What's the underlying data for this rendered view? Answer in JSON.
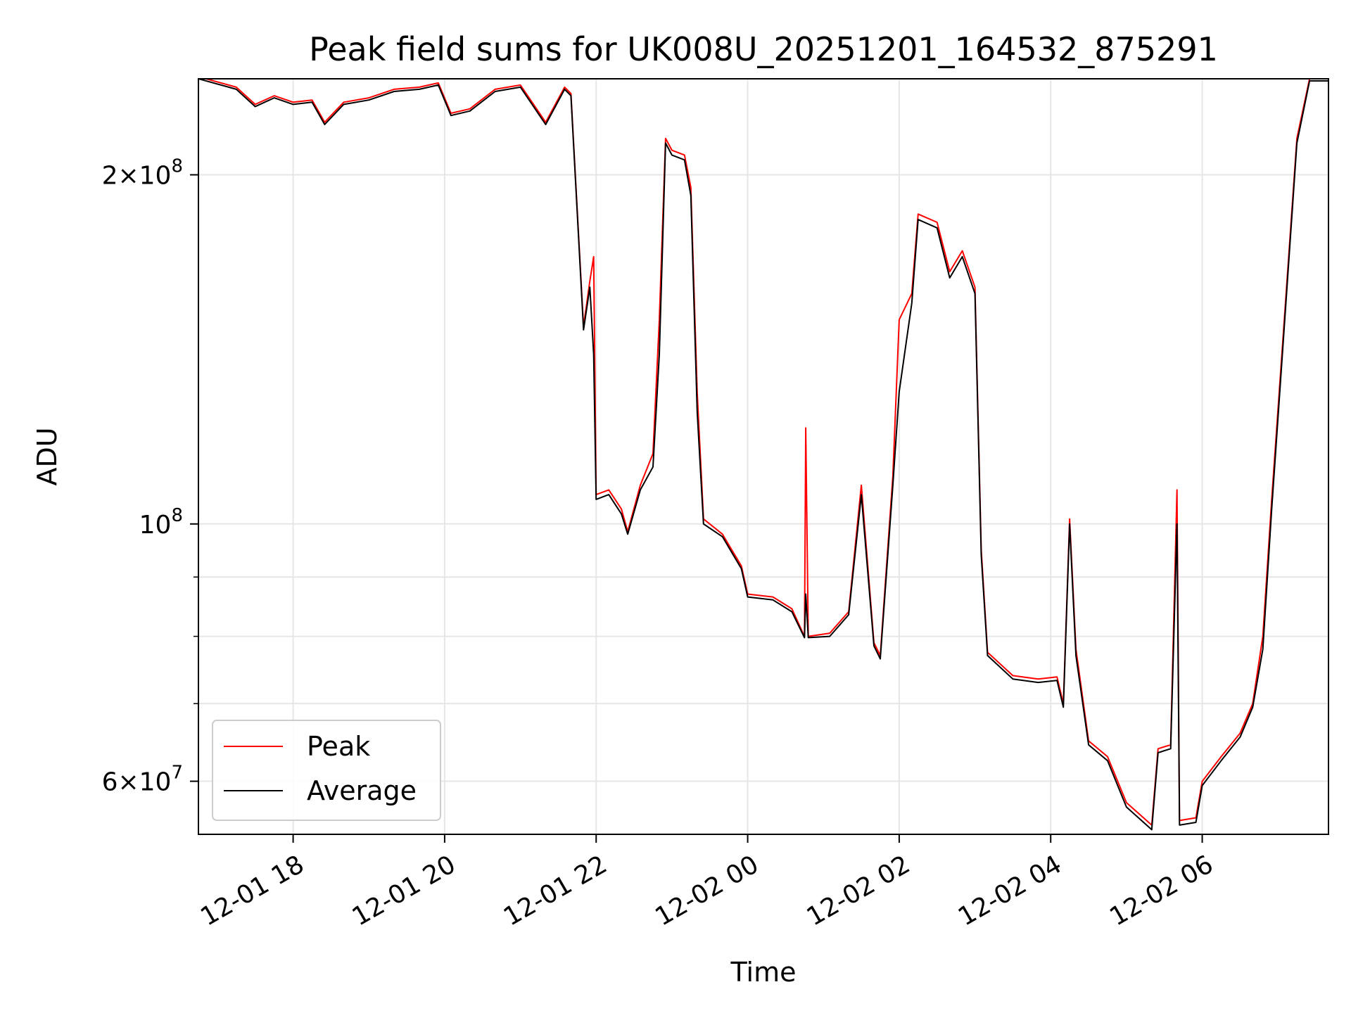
{
  "chart_data": {
    "type": "line",
    "title": "Peak field sums for UK008U_20251201_164532_875291",
    "xlabel": "Time",
    "ylabel": "ADU",
    "x_scale": "time",
    "y_scale": "log",
    "xlim": [
      "2025-12-01T16:45",
      "2025-12-02T07:40"
    ],
    "ylim": [
      54000000,
      242000000
    ],
    "x_ticks": [
      "12-01 18",
      "12-01 20",
      "12-01 22",
      "12-02 00",
      "12-02 02",
      "12-02 04",
      "12-02 06"
    ],
    "x_tick_values": [
      "2025-12-01T18:00",
      "2025-12-01T20:00",
      "2025-12-01T22:00",
      "2025-12-02T00:00",
      "2025-12-02T02:00",
      "2025-12-02T04:00",
      "2025-12-02T06:00"
    ],
    "y_major_ticks": [
      {
        "value": 60000000,
        "mantissa": "6",
        "exponent": "7"
      },
      {
        "value": 100000000,
        "mantissa": "",
        "exponent": "8"
      },
      {
        "value": 200000000,
        "mantissa": "2",
        "exponent": "8"
      }
    ],
    "y_minor_ticks": [
      70000000,
      80000000,
      90000000
    ],
    "grid": true,
    "legend": {
      "position": "lower-left",
      "entries": [
        "Peak",
        "Average"
      ]
    },
    "series": [
      {
        "name": "Peak",
        "color": "#ff0000",
        "points": [
          [
            "2025-12-01T16:45",
            243000000
          ],
          [
            "2025-12-01T17:15",
            238000000
          ],
          [
            "2025-12-01T17:30",
            230000000
          ],
          [
            "2025-12-01T17:45",
            234000000
          ],
          [
            "2025-12-01T18:00",
            231000000
          ],
          [
            "2025-12-01T18:15",
            232000000
          ],
          [
            "2025-12-01T18:25",
            222000000
          ],
          [
            "2025-12-01T18:40",
            231000000
          ],
          [
            "2025-12-01T19:00",
            233000000
          ],
          [
            "2025-12-01T19:20",
            237000000
          ],
          [
            "2025-12-01T19:40",
            238000000
          ],
          [
            "2025-12-01T19:55",
            240000000
          ],
          [
            "2025-12-01T20:05",
            226000000
          ],
          [
            "2025-12-01T20:20",
            228000000
          ],
          [
            "2025-12-01T20:40",
            237000000
          ],
          [
            "2025-12-01T21:00",
            239000000
          ],
          [
            "2025-12-01T21:20",
            222000000
          ],
          [
            "2025-12-01T21:35",
            238000000
          ],
          [
            "2025-12-01T21:40",
            235000000
          ],
          [
            "2025-12-01T21:50",
            148000000
          ],
          [
            "2025-12-01T21:55",
            162000000
          ],
          [
            "2025-12-01T21:58",
            170000000
          ],
          [
            "2025-12-01T22:00",
            106000000
          ],
          [
            "2025-12-01T22:10",
            107000000
          ],
          [
            "2025-12-01T22:20",
            103000000
          ],
          [
            "2025-12-01T22:25",
            98500000
          ],
          [
            "2025-12-01T22:35",
            108000000
          ],
          [
            "2025-12-01T22:45",
            115000000
          ],
          [
            "2025-12-01T22:50",
            150000000
          ],
          [
            "2025-12-01T22:55",
            215000000
          ],
          [
            "2025-12-01T23:00",
            210000000
          ],
          [
            "2025-12-01T23:10",
            208000000
          ],
          [
            "2025-12-01T23:15",
            195000000
          ],
          [
            "2025-12-01T23:20",
            130000000
          ],
          [
            "2025-12-01T23:25",
            101000000
          ],
          [
            "2025-12-01T23:40",
            98000000
          ],
          [
            "2025-12-01T23:55",
            92000000
          ],
          [
            "2025-12-02T00:00",
            87000000
          ],
          [
            "2025-12-02T00:20",
            86500000
          ],
          [
            "2025-12-02T00:35",
            84500000
          ],
          [
            "2025-12-02T00:45",
            80000000
          ],
          [
            "2025-12-02T00:46",
            121000000
          ],
          [
            "2025-12-02T00:48",
            80000000
          ],
          [
            "2025-12-02T01:05",
            80500000
          ],
          [
            "2025-12-02T01:20",
            84000000
          ],
          [
            "2025-12-02T01:30",
            108000000
          ],
          [
            "2025-12-02T01:40",
            79000000
          ],
          [
            "2025-12-02T01:45",
            77000000
          ],
          [
            "2025-12-02T01:55",
            110000000
          ],
          [
            "2025-12-02T02:00",
            150000000
          ],
          [
            "2025-12-02T02:10",
            158000000
          ],
          [
            "2025-12-02T02:15",
            185000000
          ],
          [
            "2025-12-02T02:30",
            182000000
          ],
          [
            "2025-12-02T02:40",
            165000000
          ],
          [
            "2025-12-02T02:50",
            172000000
          ],
          [
            "2025-12-02T03:00",
            160000000
          ],
          [
            "2025-12-02T03:05",
            95000000
          ],
          [
            "2025-12-02T03:10",
            77500000
          ],
          [
            "2025-12-02T03:30",
            74000000
          ],
          [
            "2025-12-02T03:50",
            73500000
          ],
          [
            "2025-12-02T04:05",
            73800000
          ],
          [
            "2025-12-02T04:10",
            70000000
          ],
          [
            "2025-12-02T04:15",
            101000000
          ],
          [
            "2025-12-02T04:20",
            78000000
          ],
          [
            "2025-12-02T04:30",
            65000000
          ],
          [
            "2025-12-02T04:45",
            63000000
          ],
          [
            "2025-12-02T05:00",
            57500000
          ],
          [
            "2025-12-02T05:20",
            55000000
          ],
          [
            "2025-12-02T05:25",
            64000000
          ],
          [
            "2025-12-02T05:35",
            64500000
          ],
          [
            "2025-12-02T05:40",
            107000000
          ],
          [
            "2025-12-02T05:42",
            55500000
          ],
          [
            "2025-12-02T05:55",
            55800000
          ],
          [
            "2025-12-02T06:00",
            60000000
          ],
          [
            "2025-12-02T06:15",
            63000000
          ],
          [
            "2025-12-02T06:30",
            66000000
          ],
          [
            "2025-12-02T06:40",
            70000000
          ],
          [
            "2025-12-02T06:48",
            80000000
          ],
          [
            "2025-12-02T06:55",
            105000000
          ],
          [
            "2025-12-02T07:05",
            150000000
          ],
          [
            "2025-12-02T07:15",
            215000000
          ],
          [
            "2025-12-02T07:25",
            242000000
          ],
          [
            "2025-12-02T07:40",
            242000000
          ]
        ]
      },
      {
        "name": "Average",
        "color": "#000000",
        "points": [
          [
            "2025-12-01T16:45",
            242000000
          ],
          [
            "2025-12-01T17:15",
            237000000
          ],
          [
            "2025-12-01T17:30",
            229000000
          ],
          [
            "2025-12-01T17:45",
            233000000
          ],
          [
            "2025-12-01T18:00",
            230000000
          ],
          [
            "2025-12-01T18:15",
            231000000
          ],
          [
            "2025-12-01T18:25",
            221000000
          ],
          [
            "2025-12-01T18:40",
            230000000
          ],
          [
            "2025-12-01T19:00",
            232000000
          ],
          [
            "2025-12-01T19:20",
            236000000
          ],
          [
            "2025-12-01T19:40",
            237000000
          ],
          [
            "2025-12-01T19:55",
            239000000
          ],
          [
            "2025-12-01T20:05",
            225000000
          ],
          [
            "2025-12-01T20:20",
            227000000
          ],
          [
            "2025-12-01T20:40",
            236000000
          ],
          [
            "2025-12-01T21:00",
            238000000
          ],
          [
            "2025-12-01T21:20",
            221000000
          ],
          [
            "2025-12-01T21:35",
            237000000
          ],
          [
            "2025-12-01T21:40",
            234000000
          ],
          [
            "2025-12-01T21:50",
            147000000
          ],
          [
            "2025-12-01T21:55",
            160000000
          ],
          [
            "2025-12-01T21:58",
            140000000
          ],
          [
            "2025-12-01T22:00",
            105000000
          ],
          [
            "2025-12-01T22:10",
            106000000
          ],
          [
            "2025-12-01T22:20",
            102000000
          ],
          [
            "2025-12-01T22:25",
            98000000
          ],
          [
            "2025-12-01T22:35",
            107000000
          ],
          [
            "2025-12-01T22:45",
            112000000
          ],
          [
            "2025-12-01T22:50",
            140000000
          ],
          [
            "2025-12-01T22:55",
            213000000
          ],
          [
            "2025-12-01T23:00",
            208000000
          ],
          [
            "2025-12-01T23:10",
            206000000
          ],
          [
            "2025-12-01T23:15",
            192000000
          ],
          [
            "2025-12-01T23:20",
            125000000
          ],
          [
            "2025-12-01T23:25",
            100000000
          ],
          [
            "2025-12-01T23:40",
            97500000
          ],
          [
            "2025-12-01T23:55",
            91500000
          ],
          [
            "2025-12-02T00:00",
            86500000
          ],
          [
            "2025-12-02T00:20",
            86000000
          ],
          [
            "2025-12-02T00:35",
            84000000
          ],
          [
            "2025-12-02T00:45",
            79800000
          ],
          [
            "2025-12-02T00:46",
            87000000
          ],
          [
            "2025-12-02T00:48",
            79800000
          ],
          [
            "2025-12-02T01:05",
            80000000
          ],
          [
            "2025-12-02T01:20",
            83500000
          ],
          [
            "2025-12-02T01:30",
            106000000
          ],
          [
            "2025-12-02T01:40",
            78500000
          ],
          [
            "2025-12-02T01:45",
            76500000
          ],
          [
            "2025-12-02T01:55",
            108000000
          ],
          [
            "2025-12-02T02:00",
            130000000
          ],
          [
            "2025-12-02T02:10",
            155000000
          ],
          [
            "2025-12-02T02:15",
            183000000
          ],
          [
            "2025-12-02T02:30",
            180000000
          ],
          [
            "2025-12-02T02:40",
            163000000
          ],
          [
            "2025-12-02T02:50",
            170000000
          ],
          [
            "2025-12-02T03:00",
            158000000
          ],
          [
            "2025-12-02T03:05",
            94000000
          ],
          [
            "2025-12-02T03:10",
            77000000
          ],
          [
            "2025-12-02T03:30",
            73500000
          ],
          [
            "2025-12-02T03:50",
            73000000
          ],
          [
            "2025-12-02T04:05",
            73300000
          ],
          [
            "2025-12-02T04:10",
            69500000
          ],
          [
            "2025-12-02T04:15",
            100000000
          ],
          [
            "2025-12-02T04:20",
            77000000
          ],
          [
            "2025-12-02T04:30",
            64500000
          ],
          [
            "2025-12-02T04:45",
            62500000
          ],
          [
            "2025-12-02T05:00",
            57000000
          ],
          [
            "2025-12-02T05:20",
            54500000
          ],
          [
            "2025-12-02T05:25",
            63500000
          ],
          [
            "2025-12-02T05:35",
            64000000
          ],
          [
            "2025-12-02T05:40",
            100000000
          ],
          [
            "2025-12-02T05:42",
            55000000
          ],
          [
            "2025-12-02T05:55",
            55300000
          ],
          [
            "2025-12-02T06:00",
            59500000
          ],
          [
            "2025-12-02T06:15",
            62500000
          ],
          [
            "2025-12-02T06:30",
            65500000
          ],
          [
            "2025-12-02T06:40",
            69500000
          ],
          [
            "2025-12-02T06:48",
            78000000
          ],
          [
            "2025-12-02T06:55",
            103000000
          ],
          [
            "2025-12-02T07:05",
            148000000
          ],
          [
            "2025-12-02T07:15",
            213000000
          ],
          [
            "2025-12-02T07:25",
            241000000
          ],
          [
            "2025-12-02T07:40",
            241000000
          ]
        ]
      }
    ]
  }
}
